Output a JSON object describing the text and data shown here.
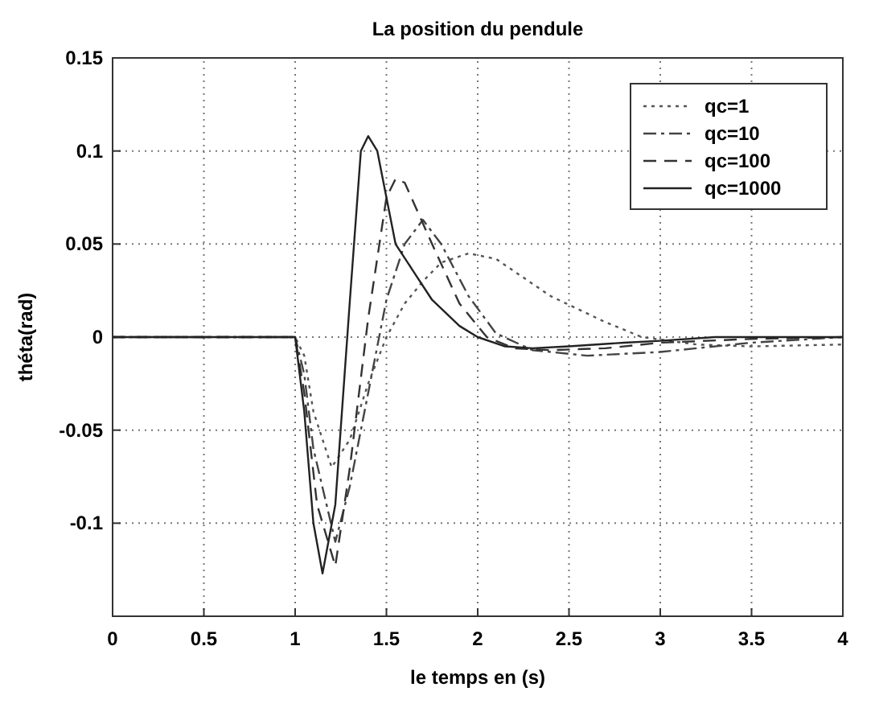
{
  "chart_data": {
    "type": "line",
    "title": "La position du pendule",
    "xlabel": "le temps en (s)",
    "ylabel": "théta(rad)",
    "xlim": [
      0,
      4
    ],
    "xticks": [
      0,
      0.5,
      1,
      1.5,
      2,
      2.5,
      3,
      3.5,
      4
    ],
    "ylim": [
      -0.15,
      0.15
    ],
    "yticks": [
      -0.1,
      -0.05,
      0,
      0.05,
      0.1,
      0.15
    ],
    "grid": true,
    "legend": "top right",
    "series": [
      {
        "name": "qc=1",
        "color": "#555555",
        "line_style": "dotted",
        "x": [
          0,
          1,
          1.05,
          1.1,
          1.2,
          1.3,
          1.4,
          1.5,
          1.6,
          1.7,
          1.8,
          1.95,
          2.1,
          2.4,
          2.7,
          2.9,
          3.2,
          3.5,
          4
        ],
        "values": [
          0,
          0,
          -0.01,
          -0.04,
          -0.07,
          -0.055,
          -0.025,
          0,
          0.018,
          0.03,
          0.04,
          0.045,
          0.042,
          0.022,
          0.008,
          0,
          -0.004,
          -0.005,
          -0.004
        ]
      },
      {
        "name": "qc=10",
        "color": "#444444",
        "line_style": "dashdot",
        "x": [
          0,
          1,
          1.05,
          1.1,
          1.22,
          1.3,
          1.4,
          1.5,
          1.6,
          1.7,
          1.8,
          1.95,
          2.1,
          2.3,
          2.6,
          3,
          3.5,
          4
        ],
        "values": [
          0,
          0,
          -0.02,
          -0.06,
          -0.11,
          -0.08,
          -0.03,
          0.02,
          0.05,
          0.063,
          0.05,
          0.022,
          0.002,
          -0.007,
          -0.01,
          -0.008,
          -0.003,
          0
        ]
      },
      {
        "name": "qc=100",
        "color": "#333333",
        "line_style": "dashed",
        "x": [
          0,
          1,
          1.05,
          1.12,
          1.22,
          1.3,
          1.4,
          1.5,
          1.55,
          1.6,
          1.75,
          1.9,
          2.05,
          2.2,
          2.4,
          2.7,
          3,
          3.5,
          4
        ],
        "values": [
          0,
          0,
          -0.03,
          -0.09,
          -0.123,
          -0.07,
          0.01,
          0.075,
          0.085,
          0.083,
          0.05,
          0.018,
          0,
          -0.006,
          -0.007,
          -0.006,
          -0.003,
          -0.001,
          0
        ]
      },
      {
        "name": "qc=1000",
        "color": "#222222",
        "line_style": "solid",
        "x": [
          0,
          1,
          1.05,
          1.1,
          1.15,
          1.22,
          1.3,
          1.36,
          1.4,
          1.45,
          1.55,
          1.65,
          1.75,
          1.9,
          2,
          2.15,
          2.3,
          2.5,
          2.8,
          3,
          3.3,
          4
        ],
        "values": [
          0,
          0,
          -0.04,
          -0.1,
          -0.127,
          -0.09,
          0.02,
          0.1,
          0.108,
          0.1,
          0.05,
          0.035,
          0.02,
          0.006,
          0,
          -0.005,
          -0.006,
          -0.005,
          -0.003,
          -0.002,
          0,
          0
        ]
      }
    ]
  }
}
